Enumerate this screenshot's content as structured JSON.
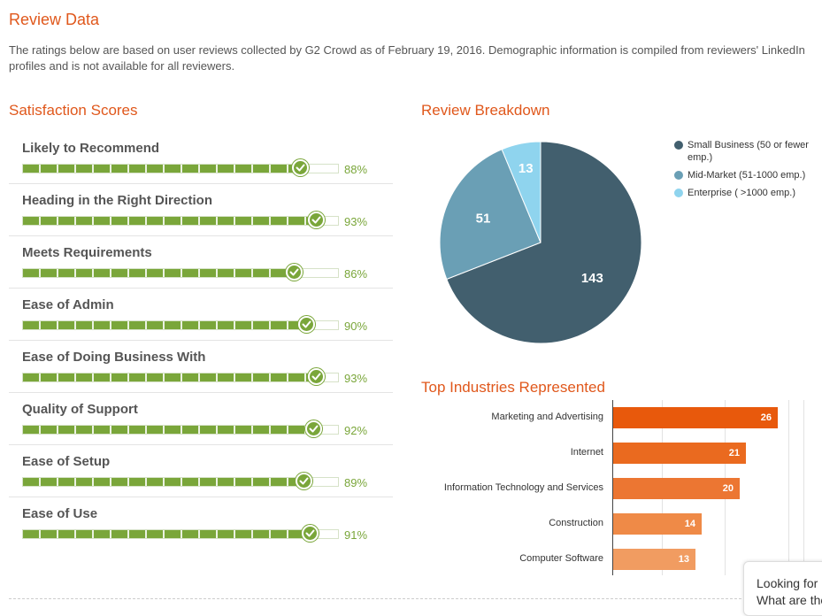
{
  "header": {
    "title": "Review Data",
    "intro": "The ratings below are based on user reviews collected by G2 Crowd as of February 19, 2016. Demographic information is compiled from reviewers' LinkedIn profiles and is not available for all reviewers."
  },
  "satisfaction": {
    "title": "Satisfaction Scores",
    "items": [
      {
        "label": "Likely to Recommend",
        "value": 88,
        "display": "88%"
      },
      {
        "label": "Heading in the Right Direction",
        "value": 93,
        "display": "93%"
      },
      {
        "label": "Meets Requirements",
        "value": 86,
        "display": "86%"
      },
      {
        "label": "Ease of Admin",
        "value": 90,
        "display": "90%"
      },
      {
        "label": "Ease of Doing Business With",
        "value": 93,
        "display": "93%"
      },
      {
        "label": "Quality of Support",
        "value": 92,
        "display": "92%"
      },
      {
        "label": "Ease of Setup",
        "value": 89,
        "display": "89%"
      },
      {
        "label": "Ease of Use",
        "value": 91,
        "display": "91%"
      }
    ]
  },
  "breakdown": {
    "title": "Review Breakdown",
    "legend": [
      {
        "label": "Small Business (50 or fewer emp.)",
        "color": "#425f6e"
      },
      {
        "label": "Mid-Market (51-1000 emp.)",
        "color": "#6a9fb5"
      },
      {
        "label": "Enterprise ( >1000 emp.)",
        "color": "#8fd4ee"
      }
    ]
  },
  "industries": {
    "title": "Top Industries Represented"
  },
  "chat": {
    "line1": "Looking for",
    "line2": "What are the"
  },
  "colors": {
    "accent": "#e0581c",
    "score_green": "#7aa63a"
  },
  "chart_data": [
    {
      "type": "pie",
      "title": "Review Breakdown",
      "categories": [
        "Small Business (50 or fewer emp.)",
        "Mid-Market (51-1000 emp.)",
        "Enterprise ( >1000 emp.)"
      ],
      "values": [
        143,
        51,
        13
      ],
      "colors": [
        "#425f6e",
        "#6a9fb5",
        "#8fd4ee"
      ],
      "legend": "right"
    },
    {
      "type": "bar",
      "orientation": "horizontal",
      "title": "Top Industries Represented",
      "categories": [
        "Marketing and Advertising",
        "Internet",
        "Information Technology and Services",
        "Construction",
        "Computer Software"
      ],
      "values": [
        26,
        21,
        20,
        14,
        13
      ],
      "colors": [
        "#e8590c",
        "#ea6a1f",
        "#ec7632",
        "#ef8a47",
        "#f19c61"
      ],
      "grid": true
    }
  ]
}
